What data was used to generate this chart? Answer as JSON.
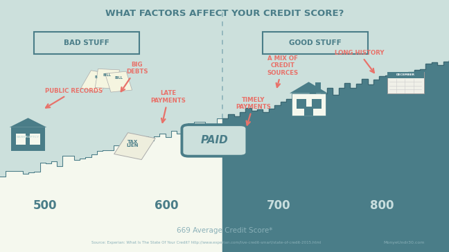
{
  "title": "WHAT FACTORS AFFECT YOUR CREDIT SCORE?",
  "bg_color": "#cce0dc",
  "bad_stuff_label": "BAD STUFF",
  "good_stuff_label": "GOOD STUFF",
  "score_labels": [
    "500",
    "600",
    "700",
    "800"
  ],
  "paid_label": "PAID",
  "avg_score_text": "669 Average Credit Score*",
  "source_text": "Source: Experian: What Is The State Of Your Credit? http://www.experian.com/live-credit-smart/state-of-credit-2015.html",
  "brand_text": "MonyeUndr30.com",
  "teal_fill": "#4a7d88",
  "teal_dark": "#3a6570",
  "light_fill": "#f5f8ee",
  "annotation_color": "#e8726a",
  "score_color_light": "#4a7d88",
  "score_color_dark": "#c8dede",
  "dashed_line_color": "#8ab0b8",
  "title_color": "#4a7d88",
  "footer_color": "#8ab0b8",
  "box_edge_color": "#4a7d88"
}
